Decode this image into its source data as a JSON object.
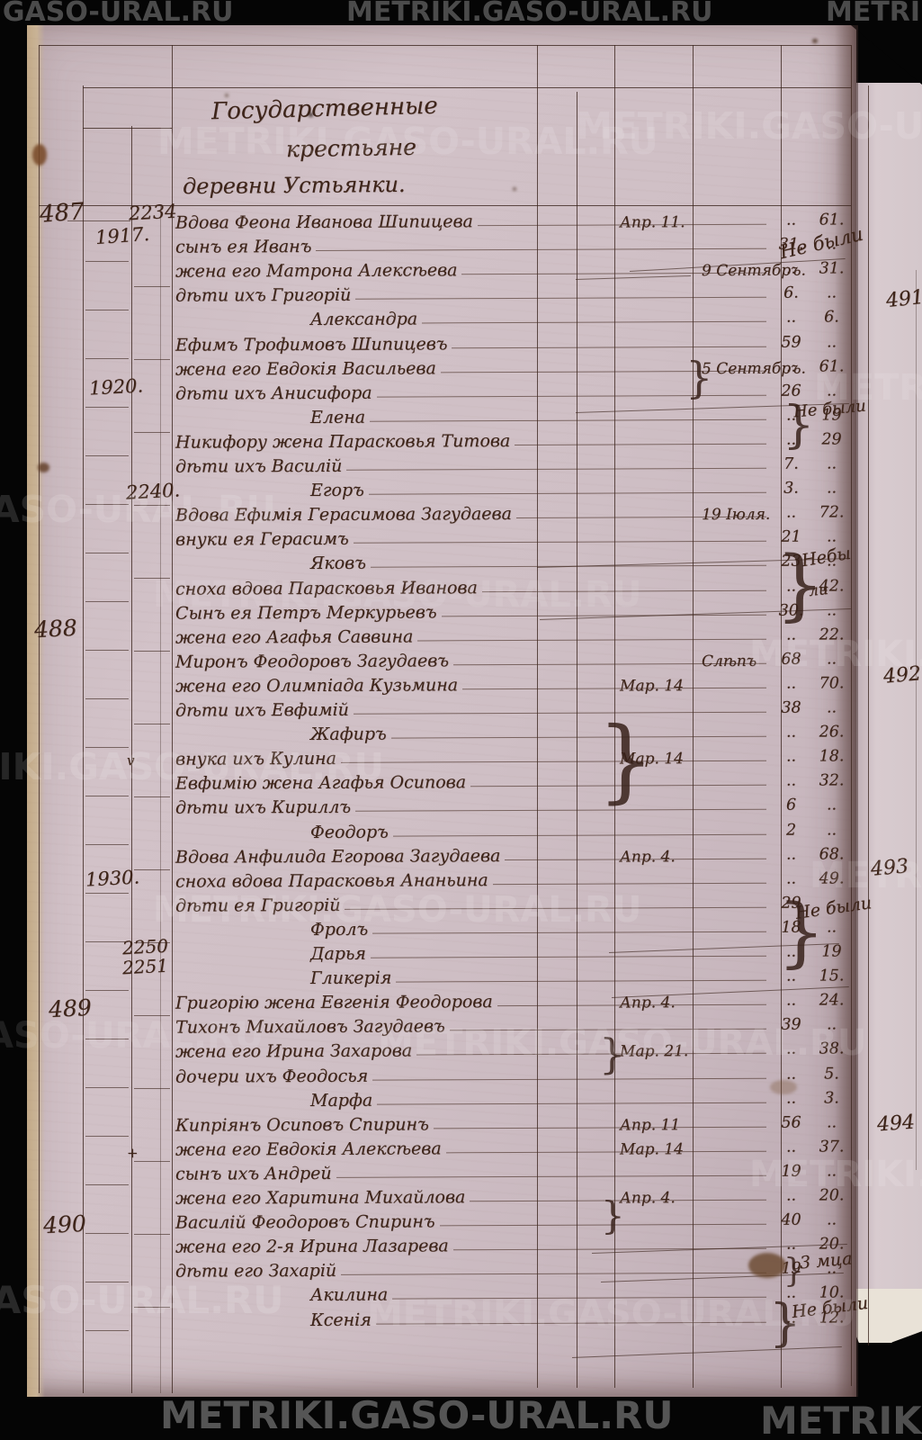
{
  "document": {
    "type": "archival_scan",
    "watermark": "METRIKI.GASO-URAL.RU",
    "header_lines": [
      "Государственные",
      "крестьяне",
      "деревни Устьянки."
    ],
    "margin_numbers": {
      "col_a": [
        "487",
        "488",
        "489",
        "490"
      ],
      "col_b": [
        "1917.",
        "1920.",
        "1930."
      ],
      "col_c": [
        "2234",
        "2240.",
        "2250",
        "2251"
      ]
    },
    "tick_marks": [
      "v",
      "+"
    ],
    "rows": [
      {
        "name": "Вдова Феона Иванова Шипицева",
        "m": "..",
        "f": "61.",
        "d": "Апр. 11."
      },
      {
        "name": "сынъ ея Иванъ",
        "m": "31.",
        "f": ".."
      },
      {
        "name": "жена его Матрона Алексѣева",
        "m": "..",
        "f": "31.",
        "d": "9 Сентябръ.",
        "far": true
      },
      {
        "name": "дѣти ихъ Григорій",
        "m": "6.",
        "f": ".."
      },
      {
        "name": "Александра",
        "c": 1,
        "m": "..",
        "f": "6."
      },
      {
        "name": "Ефимъ Трофимовъ Шипицевъ",
        "m": "59",
        "f": ".."
      },
      {
        "name": "жена его Евдокія Васильева",
        "m": "..",
        "f": "61.",
        "d": "5 Сентябръ.",
        "far": true
      },
      {
        "name": "дѣти ихъ Анисифора",
        "m": "26",
        "f": ".."
      },
      {
        "name": "Елена",
        "c": 1,
        "m": "..",
        "f": "19"
      },
      {
        "name": "Никифору жена Парасковья Титова",
        "m": "..",
        "f": "29"
      },
      {
        "name": "дѣти ихъ Василій",
        "m": "7.",
        "f": ".."
      },
      {
        "name": "Егоръ",
        "c": 1,
        "m": "3.",
        "f": ".."
      },
      {
        "name": "Вдова Ефимія Герасимова Загудаева",
        "m": "..",
        "f": "72.",
        "d": "19 Іюля.",
        "far": true
      },
      {
        "name": "внуки ея Герасимъ",
        "m": "21",
        "f": ".."
      },
      {
        "name": "Яковъ",
        "c": 1,
        "m": "23",
        "f": ".."
      },
      {
        "name": "сноха вдова Парасковья Иванова",
        "m": "..",
        "f": "42."
      },
      {
        "name": "Сынъ ея Петръ Меркурьевъ",
        "m": "30.",
        "f": ".."
      },
      {
        "name": "жена его Агафья Саввина",
        "m": "..",
        "f": "22."
      },
      {
        "name": "Миронъ Феодоровъ Загудаевъ",
        "m": "68",
        "f": "..",
        "d": "Слѣпъ",
        "far": true
      },
      {
        "name": "жена его Олимпіада Кузьмина",
        "m": "..",
        "f": "70.",
        "d": "Мар. 14"
      },
      {
        "name": "дѣти ихъ Евфимій",
        "m": "38",
        "f": ".."
      },
      {
        "name": "Жафиръ",
        "c": 1,
        "m": "..",
        "f": "26."
      },
      {
        "name": "внука ихъ Кулина",
        "m": "..",
        "f": "18.",
        "d": "Мар. 14"
      },
      {
        "name": "Евфимію жена Агафья Осипова",
        "m": "..",
        "f": "32."
      },
      {
        "name": "дѣти ихъ Кириллъ",
        "m": "6",
        "f": ".."
      },
      {
        "name": "Феодоръ",
        "c": 1,
        "m": "2",
        "f": ".."
      },
      {
        "name": "Вдова Анфилида Егорова Загудаева",
        "m": "..",
        "f": "68.",
        "d": "Апр. 4."
      },
      {
        "name": "сноха вдова Парасковья Ананьина",
        "m": "..",
        "f": "49."
      },
      {
        "name": "дѣти ея Григорій",
        "m": "29",
        "f": ".."
      },
      {
        "name": "Фролъ",
        "c": 1,
        "m": "18",
        "f": ".."
      },
      {
        "name": "Дарья",
        "c": 1,
        "m": "..",
        "f": "19"
      },
      {
        "name": "Гликерія",
        "c": 1,
        "m": "..",
        "f": "15."
      },
      {
        "name": "Григорію жена Евгенія Феодорова",
        "m": "..",
        "f": "24.",
        "d": "Апр. 4."
      },
      {
        "name": "Тихонъ Михайловъ Загудаевъ",
        "m": "39",
        "f": ".."
      },
      {
        "name": "жена его Ирина Захарова",
        "m": "..",
        "f": "38.",
        "d": "Мар. 21."
      },
      {
        "name": "дочери ихъ Феодосья",
        "m": "..",
        "f": "5."
      },
      {
        "name": "Марфа",
        "c": 1,
        "m": "..",
        "f": "3."
      },
      {
        "name": "Кипріянъ Осиповъ Спиринъ",
        "m": "56",
        "f": "..",
        "d": "Апр. 11"
      },
      {
        "name": "жена его Евдокія Алексѣева",
        "m": "..",
        "f": "37.",
        "d": "Мар. 14"
      },
      {
        "name": "сынъ ихъ Андрей",
        "m": "19",
        "f": ".."
      },
      {
        "name": "жена его Харитина Михайлова",
        "m": "..",
        "f": "20.",
        "d": "Апр. 4."
      },
      {
        "name": "Василій Феодоровъ Спиринъ",
        "m": "40",
        "f": ".."
      },
      {
        "name": "жена его 2-я Ирина Лазарева",
        "m": "..",
        "f": "20."
      },
      {
        "name": "дѣти его Захарій",
        "m": "19",
        "f": ".."
      },
      {
        "name": "Акилина",
        "c": 1,
        "m": "..",
        "f": "10."
      },
      {
        "name": "Ксенія",
        "c": 1,
        "m": "..",
        "f": "12."
      }
    ],
    "margin_notes": [
      "Не были",
      "Не были",
      "Небы",
      "ли",
      "Не были",
      "3 мца",
      "Не были"
    ],
    "adjacent_page_numbers": [
      "491",
      "492",
      "493",
      "494"
    ]
  }
}
